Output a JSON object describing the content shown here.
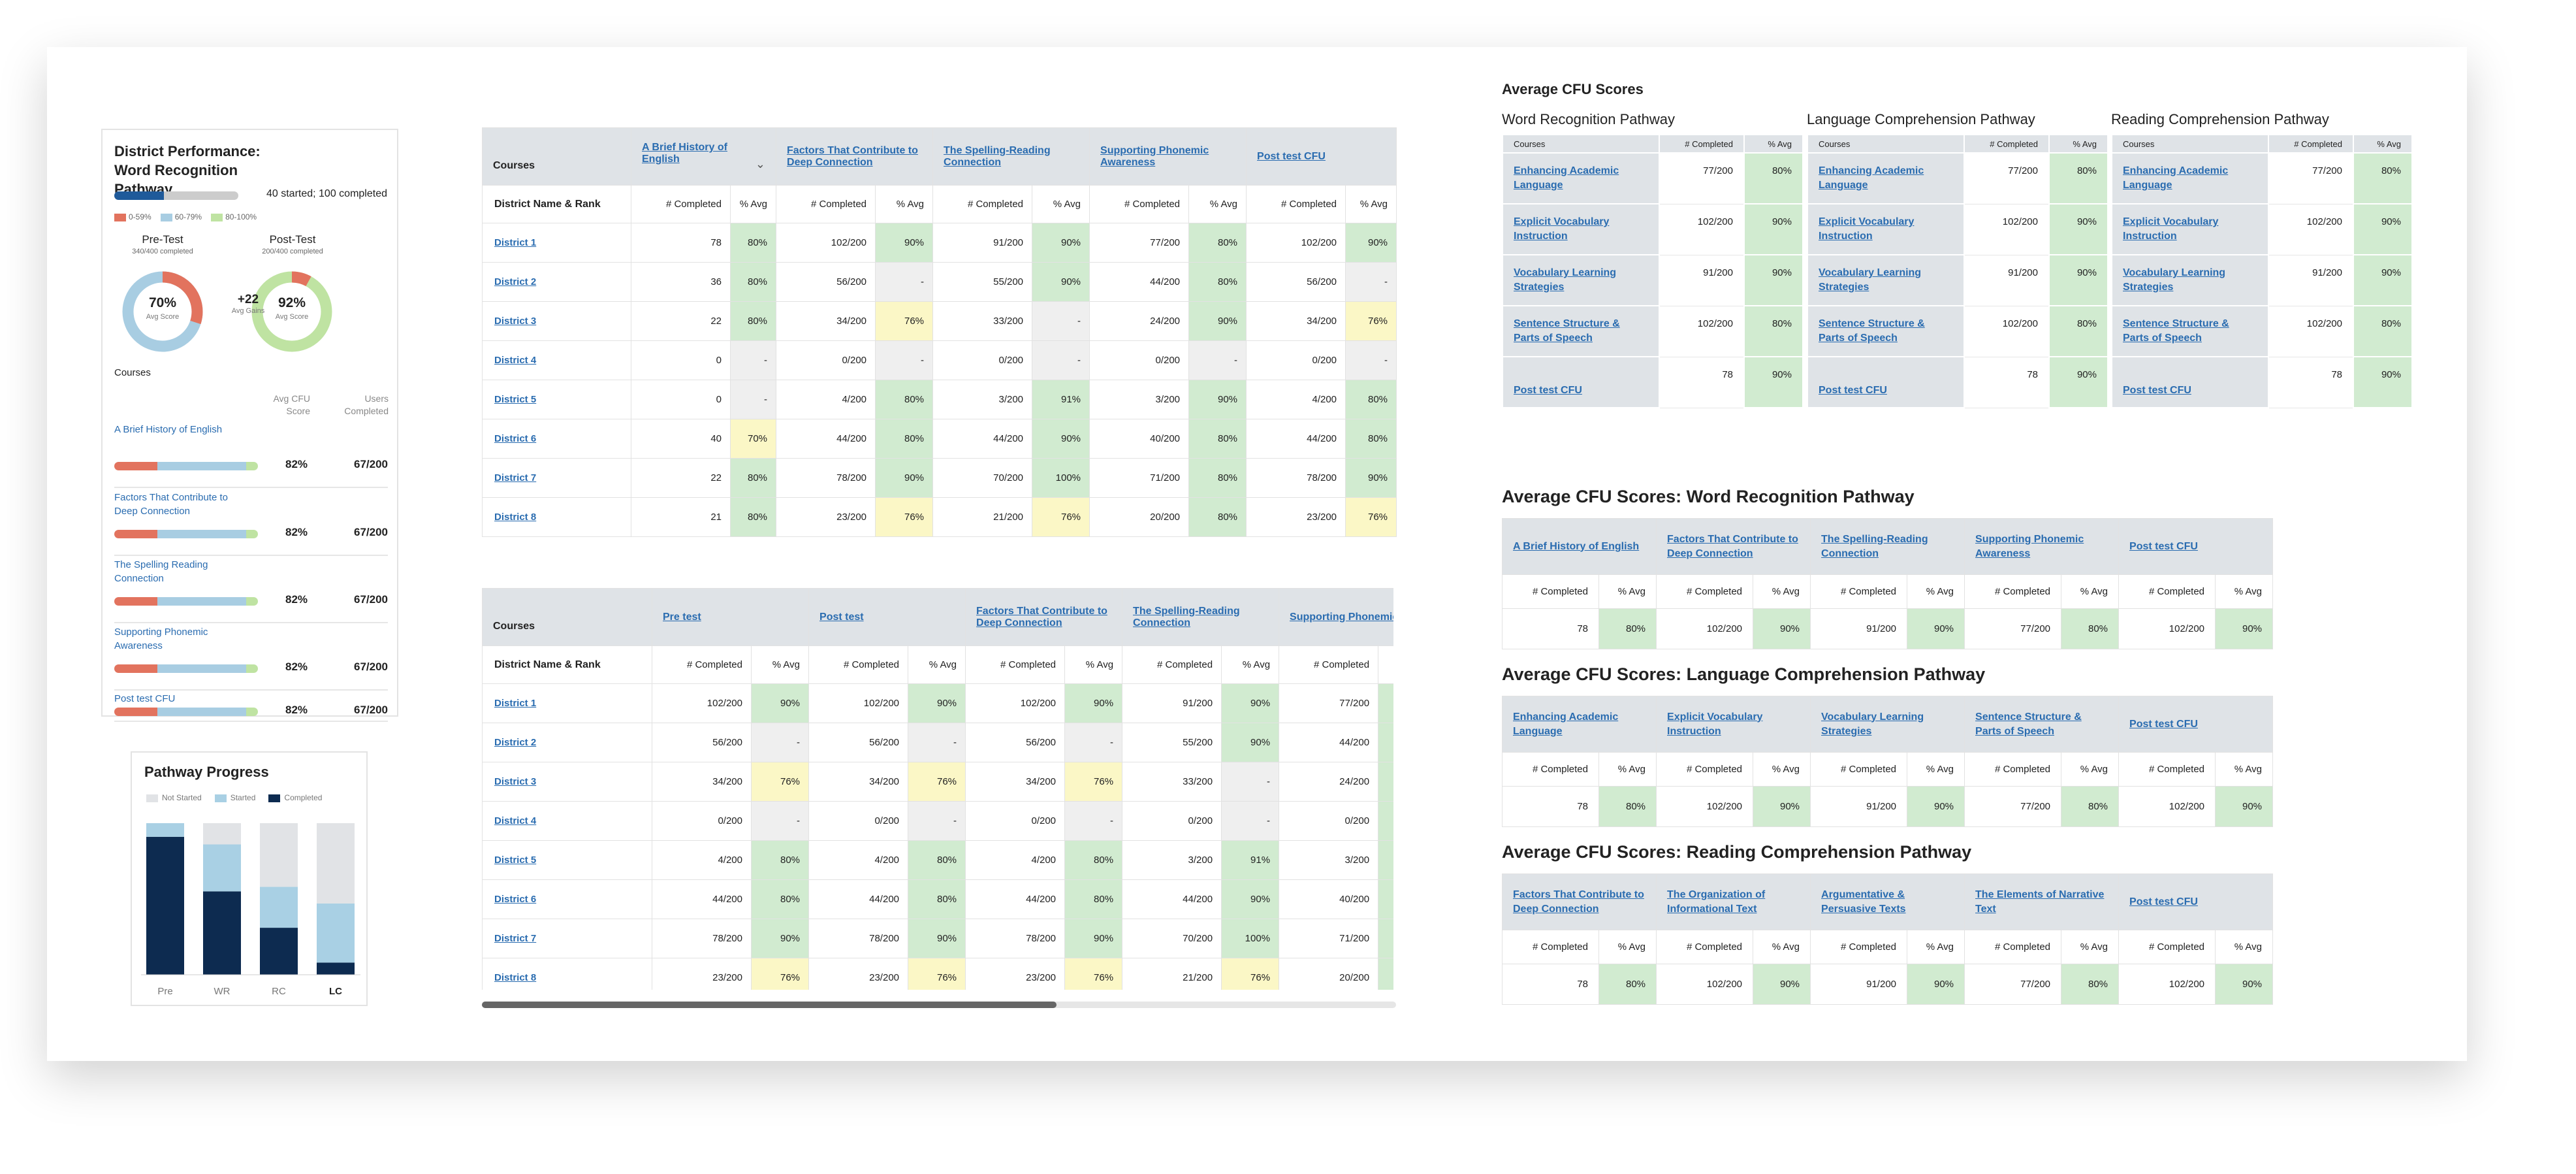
{
  "district_card": {
    "title": "District Performance: Word Recognition Pathway",
    "summary": "40 started; 100 completed",
    "progress": 0.4,
    "legend": [
      "0-59%",
      "60-79%",
      "80-100%"
    ],
    "legend_colors": [
      "#e2735e",
      "#a8cde2",
      "#bfe3a2"
    ],
    "pretest": {
      "label": "Pre-Test",
      "sub": "340/400 completed",
      "score": "70%",
      "score_label": "Avg Score",
      "fraction": 0.7
    },
    "posttest": {
      "label": "Post-Test",
      "sub": "200/400 completed",
      "score": "92%",
      "score_label": "Avg Score",
      "fraction": 0.92
    },
    "gain": {
      "value": "+22",
      "label": "Avg Gains"
    },
    "courses_heading": "Courses",
    "col_cfu": "Avg CFU Score",
    "col_users": "Users Completed",
    "courses": [
      {
        "name": "A Brief History of English",
        "score": "82%",
        "users": "67/200"
      },
      {
        "name": "Factors That Contribute to Deep Connection",
        "score": "82%",
        "users": "67/200"
      },
      {
        "name": "The Spelling Reading Connection",
        "score": "82%",
        "users": "67/200"
      },
      {
        "name": "Supporting Phonemic Awareness",
        "score": "82%",
        "users": "67/200"
      },
      {
        "name": "Post test CFU",
        "score": "82%",
        "users": "67/200"
      }
    ]
  },
  "pathway_progress": {
    "title": "Pathway Progress",
    "legend": [
      "Not Started",
      "Started",
      "Completed"
    ],
    "colors": [
      "#e1e3e6",
      "#a9d0e4",
      "#0d2b50"
    ]
  },
  "chart_data": {
    "type": "bar",
    "stacked": true,
    "categories": [
      "Pre",
      "WR",
      "RC",
      "LC"
    ],
    "series": [
      {
        "name": "Completed",
        "values": [
          91,
          55,
          31,
          8
        ]
      },
      {
        "name": "Started",
        "values": [
          9,
          31,
          27,
          39
        ]
      },
      {
        "name": "Not Started",
        "values": [
          0,
          14,
          42,
          53
        ]
      }
    ],
    "ylim": [
      0,
      100
    ]
  },
  "table1": {
    "corner": "Courses",
    "row_header": "District Name & Rank",
    "courses": [
      "A Brief History of English",
      "Factors That Contribute to Deep Connection",
      "The Spelling-Reading Connection",
      "Supporting Phonemic Awareness",
      "Post test CFU"
    ],
    "sub": [
      "# Completed",
      "% Avg"
    ],
    "rows": [
      {
        "name": "District 1",
        "cells": [
          "78",
          "80%",
          "102/200",
          "90%",
          "91/200",
          "90%",
          "77/200",
          "80%",
          "102/200",
          "90%"
        ],
        "fills": [
          "",
          "g",
          "",
          "g",
          "",
          "g",
          "",
          "g",
          "",
          "g"
        ]
      },
      {
        "name": "District 2",
        "cells": [
          "36",
          "80%",
          "56/200",
          "-",
          "55/200",
          "90%",
          "44/200",
          "80%",
          "56/200",
          "-"
        ],
        "fills": [
          "",
          "g",
          "",
          "z",
          "",
          "g",
          "",
          "g",
          "",
          "z"
        ]
      },
      {
        "name": "District 3",
        "cells": [
          "22",
          "80%",
          "34/200",
          "76%",
          "33/200",
          "-",
          "24/200",
          "90%",
          "34/200",
          "76%"
        ],
        "fills": [
          "",
          "g",
          "",
          "y",
          "",
          "z",
          "",
          "g",
          "",
          "y"
        ]
      },
      {
        "name": "District 4",
        "cells": [
          "0",
          "-",
          "0/200",
          "-",
          "0/200",
          "-",
          "0/200",
          "-",
          "0/200",
          "-"
        ],
        "fills": [
          "",
          "z",
          "",
          "z",
          "",
          "z",
          "",
          "z",
          "",
          "z"
        ]
      },
      {
        "name": "District 5",
        "cells": [
          "0",
          "-",
          "4/200",
          "80%",
          "3/200",
          "91%",
          "3/200",
          "90%",
          "4/200",
          "80%"
        ],
        "fills": [
          "",
          "z",
          "",
          "g",
          "",
          "g",
          "",
          "g",
          "",
          "g"
        ]
      },
      {
        "name": "District 6",
        "cells": [
          "40",
          "70%",
          "44/200",
          "80%",
          "44/200",
          "90%",
          "40/200",
          "80%",
          "44/200",
          "80%"
        ],
        "fills": [
          "",
          "y",
          "",
          "g",
          "",
          "g",
          "",
          "g",
          "",
          "g"
        ]
      },
      {
        "name": "District 7",
        "cells": [
          "22",
          "80%",
          "78/200",
          "90%",
          "70/200",
          "100%",
          "71/200",
          "80%",
          "78/200",
          "90%"
        ],
        "fills": [
          "",
          "g",
          "",
          "g",
          "",
          "g",
          "",
          "g",
          "",
          "g"
        ]
      },
      {
        "name": "District 8",
        "cells": [
          "21",
          "80%",
          "23/200",
          "76%",
          "21/200",
          "76%",
          "20/200",
          "80%",
          "23/200",
          "76%"
        ],
        "fills": [
          "",
          "g",
          "",
          "y",
          "",
          "y",
          "",
          "g",
          "",
          "y"
        ]
      }
    ]
  },
  "table2": {
    "corner": "Courses",
    "row_header": "District Name & Rank",
    "courses": [
      "Pre test",
      "Post test",
      "Factors That Contribute to Deep Connection",
      "The Spelling-Reading Connection",
      "Supporting Phonemic Awareness"
    ],
    "sub": [
      "# Completed",
      "% Avg"
    ],
    "rows": [
      {
        "name": "District 1",
        "cells": [
          "102/200",
          "90%",
          "102/200",
          "90%",
          "102/200",
          "90%",
          "91/200",
          "90%",
          "77/200",
          ""
        ],
        "fills": [
          "",
          "g",
          "",
          "g",
          "",
          "g",
          "",
          "g",
          "",
          "g"
        ]
      },
      {
        "name": "District 2",
        "cells": [
          "56/200",
          "-",
          "56/200",
          "-",
          "56/200",
          "-",
          "55/200",
          "90%",
          "44/200",
          ""
        ],
        "fills": [
          "",
          "z",
          "",
          "z",
          "",
          "z",
          "",
          "g",
          "",
          "g"
        ]
      },
      {
        "name": "District 3",
        "cells": [
          "34/200",
          "76%",
          "34/200",
          "76%",
          "34/200",
          "76%",
          "33/200",
          "-",
          "24/200",
          ""
        ],
        "fills": [
          "",
          "y",
          "",
          "y",
          "",
          "y",
          "",
          "z",
          "",
          "g"
        ]
      },
      {
        "name": "District 4",
        "cells": [
          "0/200",
          "-",
          "0/200",
          "-",
          "0/200",
          "-",
          "0/200",
          "-",
          "0/200",
          ""
        ],
        "fills": [
          "",
          "z",
          "",
          "z",
          "",
          "z",
          "",
          "z",
          "",
          "g"
        ]
      },
      {
        "name": "District 5",
        "cells": [
          "4/200",
          "80%",
          "4/200",
          "80%",
          "4/200",
          "80%",
          "3/200",
          "91%",
          "3/200",
          ""
        ],
        "fills": [
          "",
          "g",
          "",
          "g",
          "",
          "g",
          "",
          "g",
          "",
          "g"
        ]
      },
      {
        "name": "District 6",
        "cells": [
          "44/200",
          "80%",
          "44/200",
          "80%",
          "44/200",
          "80%",
          "44/200",
          "90%",
          "40/200",
          ""
        ],
        "fills": [
          "",
          "g",
          "",
          "g",
          "",
          "g",
          "",
          "g",
          "",
          "g"
        ]
      },
      {
        "name": "District 7",
        "cells": [
          "78/200",
          "90%",
          "78/200",
          "90%",
          "78/200",
          "90%",
          "70/200",
          "100%",
          "71/200",
          ""
        ],
        "fills": [
          "",
          "g",
          "",
          "g",
          "",
          "g",
          "",
          "g",
          "",
          "g"
        ]
      },
      {
        "name": "District 8",
        "cells": [
          "23/200",
          "76%",
          "23/200",
          "76%",
          "23/200",
          "76%",
          "21/200",
          "76%",
          "20/200",
          ""
        ],
        "fills": [
          "",
          "y",
          "",
          "y",
          "",
          "y",
          "",
          "y",
          "",
          "g"
        ]
      }
    ]
  },
  "avg_cfu": {
    "title": "Average CFU Scores",
    "col_course": "Courses",
    "col_completed": "# Completed",
    "col_avg": "% Avg",
    "pathways": [
      {
        "name": "Word Recognition Pathway",
        "rows": [
          {
            "course": "Enhancing Academic Language",
            "completed": "77/200",
            "avg": "80%"
          },
          {
            "course": "Explicit Vocabulary Instruction",
            "completed": "102/200",
            "avg": "90%"
          },
          {
            "course": "Vocabulary Learning Strategies",
            "completed": "91/200",
            "avg": "90%"
          },
          {
            "course": "Sentence Structure & Parts of Speech",
            "completed": "102/200",
            "avg": "80%"
          },
          {
            "course": "Post test CFU",
            "completed": "78",
            "avg": "90%"
          }
        ]
      },
      {
        "name": "Language Comprehension Pathway",
        "rows": [
          {
            "course": "Enhancing Academic Language",
            "completed": "77/200",
            "avg": "80%"
          },
          {
            "course": "Explicit Vocabulary Instruction",
            "completed": "102/200",
            "avg": "90%"
          },
          {
            "course": "Vocabulary Learning Strategies",
            "completed": "91/200",
            "avg": "90%"
          },
          {
            "course": "Sentence Structure & Parts of Speech",
            "completed": "102/200",
            "avg": "80%"
          },
          {
            "course": "Post test CFU",
            "completed": "78",
            "avg": "90%"
          }
        ]
      },
      {
        "name": "Reading Comprehension Pathway",
        "rows": [
          {
            "course": "Enhancing Academic Language",
            "completed": "77/200",
            "avg": "80%"
          },
          {
            "course": "Explicit Vocabulary Instruction",
            "completed": "102/200",
            "avg": "90%"
          },
          {
            "course": "Vocabulary Learning Strategies",
            "completed": "91/200",
            "avg": "90%"
          },
          {
            "course": "Sentence Structure & Parts of Speech",
            "completed": "102/200",
            "avg": "80%"
          },
          {
            "course": "Post test CFU",
            "completed": "78",
            "avg": "90%"
          }
        ]
      }
    ]
  },
  "wide_tables": [
    {
      "title": "Average CFU Scores: Word Recognition Pathway",
      "courses": [
        "A Brief History of English",
        "Factors That Contribute to Deep Connection",
        "The Spelling-Reading Connection",
        "Supporting Phonemic Awareness",
        "Post test CFU"
      ],
      "values": [
        "78",
        "80%",
        "102/200",
        "90%",
        "91/200",
        "90%",
        "77/200",
        "80%",
        "102/200",
        "90%"
      ]
    },
    {
      "title": "Average CFU Scores: Language Comprehension Pathway",
      "courses": [
        "Enhancing Academic Language",
        "Explicit Vocabulary Instruction",
        "Vocabulary Learning Strategies",
        "Sentence Structure & Parts of Speech",
        "Post test CFU"
      ],
      "values": [
        "78",
        "80%",
        "102/200",
        "90%",
        "91/200",
        "90%",
        "77/200",
        "80%",
        "102/200",
        "90%"
      ]
    },
    {
      "title": "Average CFU Scores: Reading Comprehension Pathway",
      "courses": [
        "Factors That Contribute to Deep Connection",
        "The Organization of Informational Text",
        "Argumentative & Persuasive Texts",
        "The Elements of Narrative Text",
        "Post test CFU"
      ],
      "values": [
        "78",
        "80%",
        "102/200",
        "90%",
        "91/200",
        "90%",
        "77/200",
        "80%",
        "102/200",
        "90%"
      ]
    }
  ],
  "wide_sub": [
    "# Completed",
    "% Avg"
  ]
}
